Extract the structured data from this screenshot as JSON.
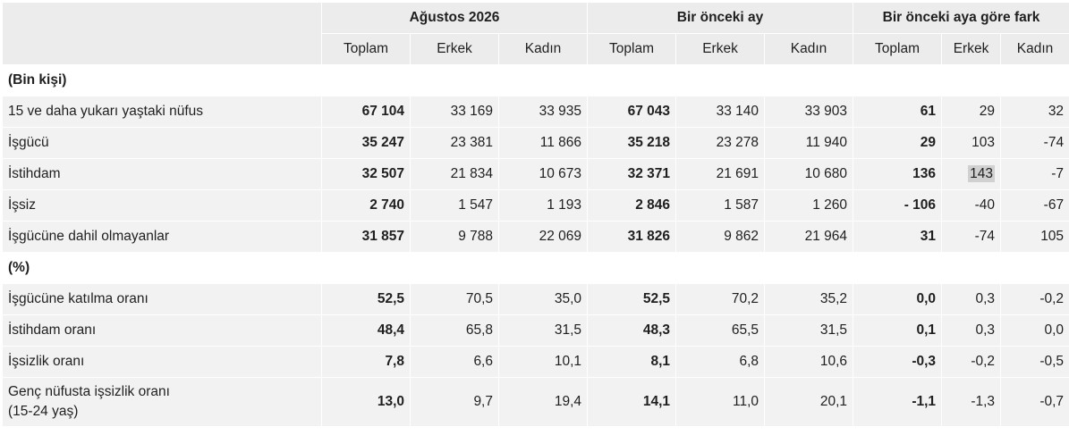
{
  "header": {
    "group1": "Ağustos 2026",
    "group2": "Bir önceki ay",
    "group3": "Bir önceki aya göre fark",
    "sub": [
      "Toplam",
      "Erkek",
      "Kadın",
      "Toplam",
      "Erkek",
      "Kadın",
      "Toplam",
      "Erkek",
      "Kadın"
    ]
  },
  "sections": {
    "thousands": "(Bin kişi)",
    "percent": "(%)"
  },
  "rows_thousands": [
    {
      "label": "15 ve daha yukarı yaştaki nüfus",
      "values": [
        "67 104",
        "33 169",
        "33 935",
        "67 043",
        "33 140",
        "33 903",
        "61",
        "29",
        "32"
      ]
    },
    {
      "label": "İşgücü",
      "values": [
        "35 247",
        "23 381",
        "11 866",
        "35 218",
        "23 278",
        "11 940",
        "29",
        "103",
        "-74"
      ]
    },
    {
      "label": "İstihdam",
      "values": [
        "32 507",
        "21 834",
        "10 673",
        "32 371",
        "21 691",
        "10 680",
        "136",
        "143",
        "-7"
      ]
    },
    {
      "label": "İşsiz",
      "values": [
        "2 740",
        "1 547",
        "1 193",
        "2 846",
        "1 587",
        "1 260",
        "- 106",
        "-40",
        "-67"
      ]
    },
    {
      "label": "İşgücüne dahil olmayanlar",
      "values": [
        "31 857",
        "9 788",
        "22 069",
        "31 826",
        "9 862",
        "21 964",
        "31",
        "-74",
        "105"
      ]
    }
  ],
  "rows_percent": [
    {
      "label": "İşgücüne katılma oranı",
      "values": [
        "52,5",
        "70,5",
        "35,0",
        "52,5",
        "70,2",
        "35,2",
        "0,0",
        "0,3",
        "-0,2"
      ]
    },
    {
      "label": "İstihdam oranı",
      "values": [
        "48,4",
        "65,8",
        "31,5",
        "48,3",
        "65,5",
        "31,5",
        "0,1",
        "0,3",
        "0,0"
      ]
    },
    {
      "label": "İşsizlik oranı",
      "values": [
        "7,8",
        "6,6",
        "10,1",
        "8,1",
        "6,8",
        "10,6",
        "-0,3",
        "-0,2",
        "-0,5"
      ]
    },
    {
      "label": "Genç nüfusta işsizlik oranı",
      "label2": "(15-24 yaş)",
      "values": [
        "13,0",
        "9,7",
        "19,4",
        "14,1",
        "11,0",
        "20,1",
        "-1,1",
        "-1,3",
        "-0,7"
      ]
    }
  ]
}
